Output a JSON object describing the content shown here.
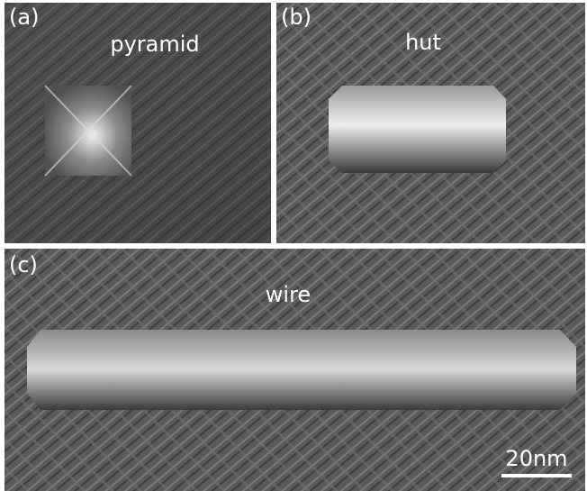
{
  "panels": [
    {
      "label": "(a)",
      "name": "pyramid"
    },
    {
      "label": "(b)",
      "name": "hut"
    },
    {
      "label": "(c)",
      "name": "wire"
    }
  ],
  "scale_bar": "20nm"
}
